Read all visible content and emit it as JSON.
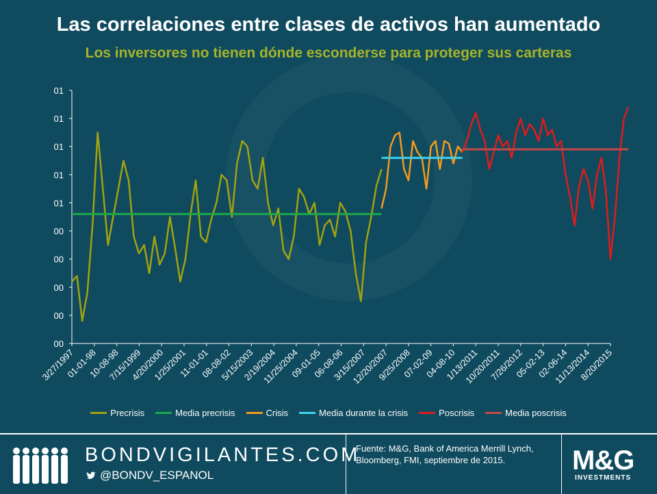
{
  "header": {
    "title": "Las correlaciones entre clases de activos han aumentado",
    "subtitle": "Los inversores no tienen dónde esconderse para proteger sus carteras"
  },
  "colors": {
    "background": "#0f4a5e",
    "precrisis": "#a3a30f",
    "media_precrisis": "#1faa4b",
    "crisis": "#f59a1f",
    "media_crisis": "#3fd3f0",
    "poscrisis": "#e21b1b",
    "media_poscrisis": "#c84848",
    "subtitle": "#a6b42a"
  },
  "chart_data": {
    "type": "line",
    "title": "Las correlaciones entre clases de activos han aumentado",
    "ylim": [
      0,
      0.9
    ],
    "y_ticks": [
      0,
      0.1,
      0.2,
      0.3,
      0.4,
      0.5,
      0.6,
      0.7,
      0.8,
      0.9
    ],
    "y_tick_labels": [
      "00",
      "00",
      "00",
      "00",
      "00",
      "01",
      "01",
      "01",
      "01",
      "01"
    ],
    "x_tick_labels": [
      "3/27/1997",
      "01-01-98",
      "10-08-98",
      "7/15/1999",
      "4/20/2000",
      "1/25/2001",
      "11-01-01",
      "08-08-02",
      "5/15/2003",
      "2/19/2004",
      "11/25/2004",
      "09-01-05",
      "06-08-06",
      "3/15/2007",
      "12/20/2007",
      "9/25/2008",
      "07-02-09",
      "04-08-10",
      "1/13/2011",
      "10/20/2011",
      "7/26/2012",
      "05-02-13",
      "02-06-14",
      "11/13/2014",
      "8/20/2015"
    ],
    "series": [
      {
        "name": "Precrisis",
        "x_range": [
          0,
          13.8
        ],
        "values": [
          0.22,
          0.24,
          0.08,
          0.18,
          0.42,
          0.75,
          0.55,
          0.35,
          0.45,
          0.55,
          0.65,
          0.58,
          0.38,
          0.32,
          0.35,
          0.25,
          0.38,
          0.28,
          0.32,
          0.45,
          0.34,
          0.22,
          0.3,
          0.46,
          0.58,
          0.38,
          0.36,
          0.44,
          0.5,
          0.6,
          0.58,
          0.45,
          0.64,
          0.72,
          0.7,
          0.58,
          0.55,
          0.66,
          0.5,
          0.42,
          0.48,
          0.33,
          0.3,
          0.38,
          0.55,
          0.52,
          0.46,
          0.5,
          0.35,
          0.42,
          0.44,
          0.38,
          0.5,
          0.47,
          0.4,
          0.25,
          0.15,
          0.36,
          0.45,
          0.56,
          0.62
        ]
      },
      {
        "name": "Media precrisis",
        "x": [
          0,
          13.8
        ],
        "values": [
          0.46,
          0.46
        ]
      },
      {
        "name": "Crisis",
        "x_range": [
          13.8,
          17.4
        ],
        "values": [
          0.48,
          0.55,
          0.7,
          0.74,
          0.75,
          0.62,
          0.58,
          0.72,
          0.68,
          0.66,
          0.55,
          0.7,
          0.72,
          0.62,
          0.72,
          0.71,
          0.64,
          0.7,
          0.68
        ]
      },
      {
        "name": "Media durante la crisis",
        "x": [
          13.8,
          17.4
        ],
        "values": [
          0.66,
          0.66
        ]
      },
      {
        "name": "Poscrisis",
        "x_range": [
          17.4,
          24.8
        ],
        "values": [
          0.68,
          0.72,
          0.78,
          0.82,
          0.76,
          0.72,
          0.62,
          0.68,
          0.74,
          0.7,
          0.72,
          0.66,
          0.75,
          0.8,
          0.74,
          0.78,
          0.76,
          0.72,
          0.8,
          0.74,
          0.76,
          0.7,
          0.72,
          0.6,
          0.52,
          0.42,
          0.56,
          0.62,
          0.58,
          0.48,
          0.6,
          0.66,
          0.54,
          0.3,
          0.45,
          0.66,
          0.8,
          0.84
        ]
      },
      {
        "name": "Media poscrisis",
        "x": [
          17.4,
          24.8
        ],
        "values": [
          0.69,
          0.69
        ]
      }
    ],
    "legend": [
      "Precrisis",
      "Media precrisis",
      "Crisis",
      "Media durante la crisis",
      "Poscrisis",
      "Media poscrisis"
    ],
    "legend_position": "bottom"
  },
  "footer": {
    "brand": "BONDVIGILANTES.COM",
    "twitter": "@BONDV_ESPANOL",
    "source": "Fuente: M&G, Bank of America Merrill Lynch, Bloomberg, FMI, septiembre de 2015.",
    "logo_main": "M&G",
    "logo_sub": "INVESTMENTS"
  }
}
